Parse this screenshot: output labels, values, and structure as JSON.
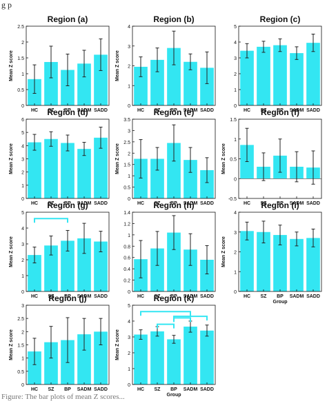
{
  "figure": {
    "caption_fragment": "g p",
    "footer_fragment": "Figure: The bar plots of mean Z scores...",
    "bar_color": "#33e6f2",
    "sig_color": "#33e6f2"
  },
  "chart_data": [
    {
      "type": "bar",
      "title": "Region (a)",
      "xlabel": "",
      "ylabel": "Mean Z score",
      "categories": [
        "HC",
        "SZ",
        "BP",
        "SADM",
        "SADD"
      ],
      "values": [
        0.83,
        1.37,
        1.12,
        1.32,
        1.6
      ],
      "errors": [
        0.45,
        0.5,
        0.5,
        0.42,
        0.5
      ],
      "ylim": [
        0,
        2.5
      ],
      "yticks": [
        "0",
        "0.5",
        "1",
        "1.5",
        "2",
        "2.5"
      ],
      "significance": []
    },
    {
      "type": "bar",
      "title": "Region (b)",
      "xlabel": "",
      "ylabel": "Mean Z score",
      "categories": [
        "HC",
        "SZ",
        "BP",
        "SADM",
        "SADD"
      ],
      "values": [
        1.95,
        2.3,
        2.9,
        2.2,
        1.9
      ],
      "errors": [
        0.5,
        0.6,
        0.85,
        0.4,
        0.8
      ],
      "ylim": [
        0,
        4
      ],
      "yticks": [
        "0",
        "1",
        "2",
        "3",
        "4"
      ],
      "significance": []
    },
    {
      "type": "bar",
      "title": "Region (c)",
      "xlabel": "",
      "ylabel": "",
      "categories": [
        "HC",
        "SZ",
        "BP",
        "SADM",
        "SADD"
      ],
      "values": [
        3.45,
        3.7,
        3.8,
        3.3,
        3.95
      ],
      "errors": [
        0.45,
        0.35,
        0.4,
        0.4,
        0.55
      ],
      "ylim": [
        0,
        5
      ],
      "yticks": [
        "0",
        "1",
        "2",
        "3",
        "4",
        "5"
      ],
      "significance": []
    },
    {
      "type": "bar",
      "title": "Region (d)",
      "xlabel": "",
      "ylabel": "Mean Z score",
      "categories": [
        "HC",
        "SZ",
        "BP",
        "SADM",
        "SADD"
      ],
      "values": [
        4.25,
        4.5,
        4.2,
        3.75,
        4.6
      ],
      "errors": [
        0.6,
        0.55,
        0.6,
        0.5,
        0.8
      ],
      "ylim": [
        0,
        6
      ],
      "yticks": [
        "0",
        "1",
        "2",
        "3",
        "4",
        "5",
        "6"
      ],
      "significance": []
    },
    {
      "type": "bar",
      "title": "Region (e)",
      "xlabel": "",
      "ylabel": "Mean Z score",
      "categories": [
        "HC",
        "SZ",
        "BP",
        "SADM",
        "SADD"
      ],
      "values": [
        1.75,
        1.75,
        2.45,
        1.7,
        1.25
      ],
      "errors": [
        0.85,
        0.5,
        0.8,
        0.55,
        0.55
      ],
      "ylim": [
        0,
        3.5
      ],
      "yticks": [
        "0",
        "0.5",
        "1",
        "1.5",
        "2",
        "2.5",
        "3",
        "3.5"
      ],
      "significance": []
    },
    {
      "type": "bar",
      "title": "Region (f)",
      "xlabel": "",
      "ylabel": "Mean Z score",
      "categories": [
        "HC",
        "SZ",
        "BP",
        "SADM",
        "SADD"
      ],
      "values": [
        0.85,
        0.3,
        0.58,
        0.3,
        0.28
      ],
      "errors": [
        0.42,
        0.35,
        0.42,
        0.38,
        0.42
      ],
      "ylim": [
        -0.5,
        1.5
      ],
      "yticks": [
        "-0.5",
        "0",
        "0.5",
        "1",
        "1.5"
      ],
      "significance": []
    },
    {
      "type": "bar",
      "title": "Region (g)",
      "xlabel": "",
      "ylabel": "Mean Z score",
      "categories": [
        "HC",
        "SZ",
        "BP",
        "SADM",
        "SADD"
      ],
      "values": [
        2.3,
        2.9,
        3.2,
        3.35,
        3.15
      ],
      "errors": [
        0.5,
        0.6,
        0.65,
        0.95,
        0.65
      ],
      "ylim": [
        0,
        5
      ],
      "yticks": [
        "0",
        "1",
        "2",
        "3",
        "4",
        "5"
      ],
      "significance": [
        {
          "from": 0,
          "to": 2,
          "level": 4.6
        }
      ]
    },
    {
      "type": "bar",
      "title": "Region (h)",
      "xlabel": "",
      "ylabel": "",
      "categories": [
        "HC",
        "SZ",
        "BP",
        "SADM",
        "SADD"
      ],
      "values": [
        0.57,
        0.76,
        1.04,
        0.74,
        0.56
      ],
      "errors": [
        0.33,
        0.3,
        0.3,
        0.28,
        0.25
      ],
      "ylim": [
        0,
        1.4
      ],
      "yticks": [
        "0",
        "0.2",
        "0.4",
        "0.6",
        "0.8",
        "1",
        "1.2",
        "1.4"
      ],
      "significance": []
    },
    {
      "type": "bar",
      "title": "Region (i)",
      "xlabel": "Group",
      "ylabel": "Mean Z score",
      "categories": [
        "HC",
        "SZ",
        "BP",
        "SADM",
        "SADD"
      ],
      "values": [
        3.05,
        3.0,
        2.85,
        2.65,
        2.7
      ],
      "errors": [
        0.45,
        0.55,
        0.5,
        0.35,
        0.45
      ],
      "ylim": [
        0,
        4
      ],
      "yticks": [
        "0",
        "1",
        "2",
        "3",
        "4"
      ],
      "significance": []
    },
    {
      "type": "bar",
      "title": "Region (j)",
      "xlabel": "",
      "ylabel": "Mean Z score",
      "categories": [
        "HC",
        "SZ",
        "BP",
        "SADM",
        "SADD"
      ],
      "values": [
        1.25,
        1.6,
        1.68,
        1.9,
        2.0
      ],
      "errors": [
        0.5,
        0.6,
        0.85,
        0.6,
        0.5
      ],
      "ylim": [
        0,
        3
      ],
      "yticks": [
        "0",
        "0.5",
        "1",
        "1.5",
        "2",
        "2.5",
        "3"
      ],
      "significance": []
    },
    {
      "type": "bar",
      "title": "Region (k)",
      "xlabel": "Group",
      "ylabel": "Mean Z score",
      "categories": [
        "HC",
        "SZ",
        "BP",
        "SADM",
        "SADD"
      ],
      "values": [
        3.15,
        3.35,
        2.85,
        3.65,
        3.4
      ],
      "errors": [
        0.3,
        0.3,
        0.25,
        0.35,
        0.35
      ],
      "ylim": [
        0,
        5
      ],
      "yticks": [
        "0",
        "1",
        "2",
        "3",
        "4",
        "5"
      ],
      "significance": [
        {
          "from": 1,
          "to": 2,
          "level": 3.8
        },
        {
          "from": 2,
          "to": 3,
          "level": 4.2
        },
        {
          "from": 0,
          "to": 3,
          "level": 4.6
        },
        {
          "from": 2,
          "to": 4,
          "level": 4.3
        }
      ]
    }
  ]
}
